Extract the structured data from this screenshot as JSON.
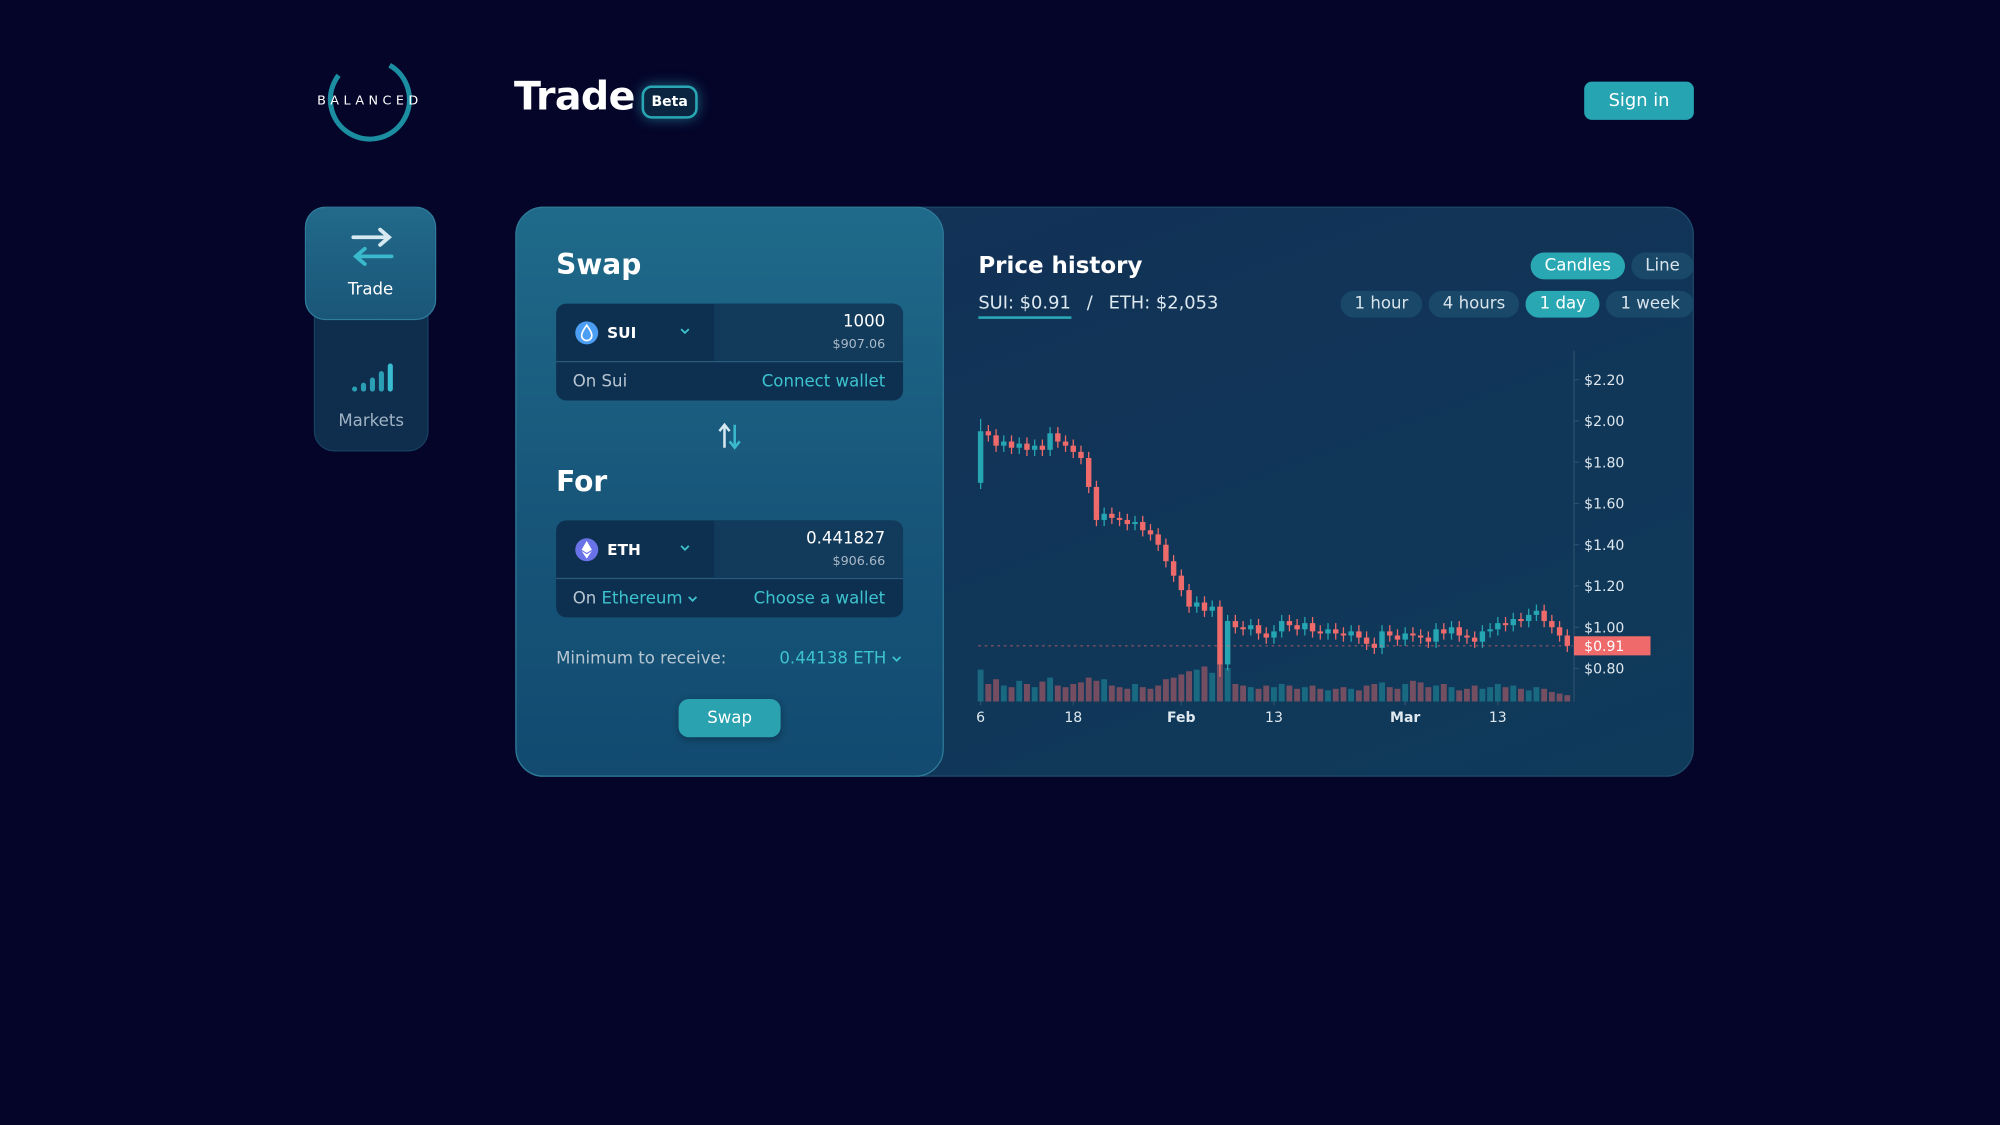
{
  "header": {
    "logo": "BALANCED",
    "title": "Trade",
    "badge": "Beta",
    "sign_in": "Sign in"
  },
  "sidebar": {
    "items": [
      "Trade",
      "Markets"
    ]
  },
  "swap": {
    "title": "Swap",
    "from": {
      "token": "SUI",
      "amount": "1000",
      "usd": "$907.06",
      "network": "On Sui",
      "action": "Connect wallet"
    },
    "for_title": "For",
    "to": {
      "token": "ETH",
      "amount": "0.441827",
      "usd": "$906.66",
      "network_prefix": "On",
      "network": "Ethereum",
      "action": "Choose a wallet"
    },
    "minimum_label": "Minimum to receive:",
    "minimum_value": "0.44138 ETH",
    "button": "Swap"
  },
  "price_panel": {
    "title": "Price history",
    "prices": [
      "SUI: $0.91",
      "ETH: $2,053"
    ],
    "separator": "/",
    "chart_types": [
      "Candles",
      "Line"
    ],
    "intervals": [
      "1 hour",
      "4 hours",
      "1 day",
      "1 week"
    ]
  },
  "chart_data": {
    "type": "candlestick",
    "open": [
      1.7,
      1.95,
      1.93,
      1.88,
      1.9,
      1.87,
      1.89,
      1.86,
      1.88,
      1.86,
      1.94,
      1.9,
      1.88,
      1.85,
      1.82,
      1.68,
      1.52,
      1.55,
      1.53,
      1.52,
      1.5,
      1.51,
      1.47,
      1.45,
      1.4,
      1.32,
      1.25,
      1.18,
      1.1,
      1.12,
      1.08,
      1.1,
      0.82,
      1.03,
      1.0,
      0.99,
      1.01,
      0.97,
      0.95,
      0.98,
      1.03,
      1.01,
      0.99,
      1.02,
      0.98,
      0.97,
      0.99,
      0.97,
      0.96,
      0.98,
      0.95,
      0.92,
      0.9,
      0.98,
      0.96,
      0.94,
      0.97,
      0.96,
      0.95,
      0.93,
      0.99,
      0.97,
      1.0,
      0.96,
      0.95,
      0.93,
      0.98,
      0.99,
      1.02,
      1.01,
      1.04,
      1.03,
      1.06,
      1.08,
      1.03,
      1.0,
      0.96
    ],
    "high": [
      2.01,
      1.98,
      1.96,
      1.93,
      1.93,
      1.92,
      1.92,
      1.91,
      1.91,
      1.97,
      1.97,
      1.93,
      1.91,
      1.88,
      1.85,
      1.71,
      1.58,
      1.58,
      1.56,
      1.55,
      1.54,
      1.54,
      1.5,
      1.48,
      1.43,
      1.35,
      1.28,
      1.21,
      1.15,
      1.15,
      1.13,
      1.13,
      1.06,
      1.06,
      1.03,
      1.04,
      1.04,
      1.0,
      1.01,
      1.06,
      1.06,
      1.04,
      1.05,
      1.05,
      1.01,
      1.02,
      1.02,
      1.0,
      1.01,
      1.01,
      0.98,
      0.95,
      1.01,
      1.01,
      0.99,
      1.0,
      1.0,
      0.99,
      0.98,
      1.02,
      1.02,
      1.03,
      1.03,
      0.99,
      0.98,
      1.01,
      1.02,
      1.05,
      1.05,
      1.07,
      1.07,
      1.09,
      1.11,
      1.11,
      1.06,
      1.03,
      0.99
    ],
    "low": [
      1.67,
      1.9,
      1.85,
      1.85,
      1.84,
      1.84,
      1.83,
      1.83,
      1.83,
      1.83,
      1.87,
      1.85,
      1.82,
      1.79,
      1.65,
      1.49,
      1.49,
      1.5,
      1.49,
      1.47,
      1.47,
      1.44,
      1.42,
      1.37,
      1.29,
      1.22,
      1.15,
      1.07,
      1.07,
      1.05,
      1.05,
      0.76,
      0.79,
      0.97,
      0.96,
      0.96,
      0.94,
      0.92,
      0.92,
      0.95,
      0.98,
      0.96,
      0.96,
      0.95,
      0.94,
      0.94,
      0.94,
      0.93,
      0.93,
      0.92,
      0.89,
      0.87,
      0.87,
      0.93,
      0.91,
      0.91,
      0.93,
      0.92,
      0.9,
      0.9,
      0.94,
      0.94,
      0.93,
      0.92,
      0.9,
      0.9,
      0.95,
      0.96,
      0.98,
      0.98,
      1.0,
      1.0,
      1.03,
      1.0,
      0.97,
      0.93,
      0.88
    ],
    "close": [
      1.95,
      1.93,
      1.88,
      1.9,
      1.87,
      1.89,
      1.86,
      1.88,
      1.86,
      1.94,
      1.9,
      1.88,
      1.85,
      1.82,
      1.68,
      1.52,
      1.55,
      1.53,
      1.52,
      1.5,
      1.51,
      1.47,
      1.45,
      1.4,
      1.32,
      1.25,
      1.18,
      1.1,
      1.12,
      1.08,
      1.1,
      0.82,
      1.03,
      1.0,
      0.99,
      1.01,
      0.97,
      0.95,
      0.98,
      1.03,
      1.01,
      0.99,
      1.02,
      0.98,
      0.97,
      0.99,
      0.97,
      0.96,
      0.98,
      0.95,
      0.92,
      0.9,
      0.98,
      0.96,
      0.94,
      0.97,
      0.96,
      0.95,
      0.93,
      0.99,
      0.97,
      1.0,
      0.96,
      0.95,
      0.93,
      0.98,
      0.99,
      1.02,
      1.01,
      1.04,
      1.03,
      1.06,
      1.08,
      1.03,
      1.0,
      0.96,
      0.91
    ],
    "volume": [
      40,
      22,
      28,
      20,
      18,
      26,
      22,
      18,
      25,
      30,
      20,
      18,
      22,
      24,
      30,
      26,
      28,
      20,
      18,
      16,
      22,
      18,
      16,
      20,
      28,
      30,
      34,
      38,
      40,
      44,
      36,
      48,
      42,
      22,
      20,
      18,
      16,
      20,
      18,
      22,
      20,
      16,
      18,
      20,
      16,
      14,
      16,
      18,
      16,
      14,
      20,
      22,
      24,
      18,
      16,
      22,
      26,
      24,
      18,
      20,
      22,
      18,
      14,
      16,
      20,
      16,
      18,
      22,
      18,
      20,
      16,
      14,
      18,
      16,
      12,
      10,
      8
    ],
    "xlim": [
      -0.3,
      76.7
    ],
    "xticks": [
      {
        "value": 0,
        "label": "6"
      },
      {
        "value": 12,
        "label": "18"
      },
      {
        "value": 26,
        "label": "Feb"
      },
      {
        "value": 38,
        "label": "13"
      },
      {
        "value": 55,
        "label": "Mar"
      },
      {
        "value": 67,
        "label": "13"
      }
    ],
    "ylim": [
      0.64,
      2.34
    ],
    "yticks": [
      {
        "value": 0.8,
        "label": "$0.80"
      },
      {
        "value": 1.0,
        "label": "$1.00"
      },
      {
        "value": 1.2,
        "label": "$1.20"
      },
      {
        "value": 1.4,
        "label": "$1.40"
      },
      {
        "value": 1.6,
        "label": "$1.60"
      },
      {
        "value": 1.8,
        "label": "$1.80"
      },
      {
        "value": 2.0,
        "label": "$2.00"
      },
      {
        "value": 2.2,
        "label": "$2.20"
      }
    ],
    "last_price": {
      "value": 0.91,
      "label": "$0.91"
    },
    "up_color": "#26a6b2",
    "down_color": "#ef6b6b"
  }
}
